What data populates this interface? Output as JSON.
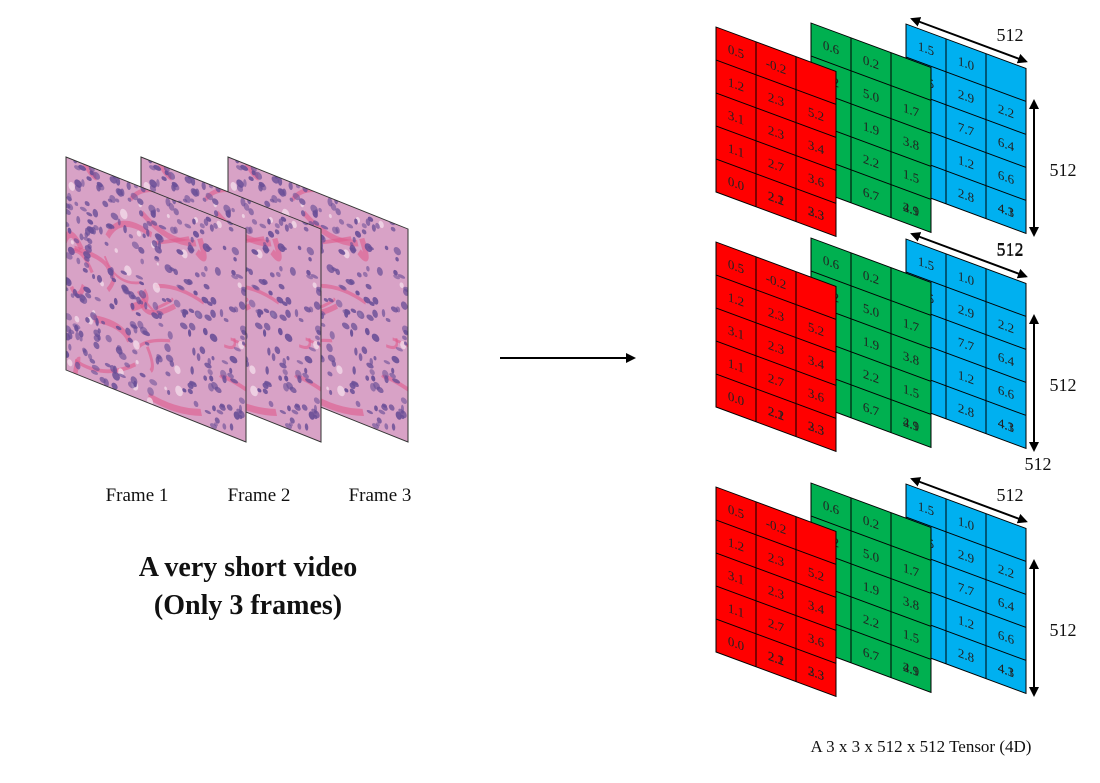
{
  "video": {
    "frame_labels": [
      "Frame 1",
      "Frame 2",
      "Frame 3"
    ],
    "title_line1": "A very short video",
    "title_line2": "(Only 3 frames)",
    "frame_colors": {
      "base": "#d8a2c6",
      "nuclei": "#6a4f97",
      "stroma": "#e05a8c",
      "light": "#f2dbe8"
    }
  },
  "tensor": {
    "caption": "A 3 x 3 x 512 x 512 Tensor (4D)",
    "dim_label": "512",
    "channels": [
      {
        "name": "red",
        "color": "#ff0000",
        "values": [
          "0.5",
          "-0.2",
          "1.2",
          "2.3",
          "5.2",
          "3.1",
          "2.3",
          "3.4",
          "1.1",
          "2.7",
          "3.6",
          "0.0",
          "2.2",
          "3.3",
          "2.1",
          "2.3"
        ]
      },
      {
        "name": "green",
        "color": "#00b050",
        "values": [
          "0.6",
          "0.2",
          "1.2",
          "5.0",
          "1.7",
          "1.9",
          "3.8",
          "2.2",
          "1.5",
          "6.7",
          "2.1",
          "4.9"
        ]
      },
      {
        "name": "blue",
        "color": "#00b0f0",
        "values": [
          "1.5",
          "1.0",
          "1.5",
          "2.9",
          "2.2",
          "7.7",
          "6.4",
          "1.2",
          "6.6",
          "2.8",
          "4.3",
          "4.1"
        ]
      }
    ]
  }
}
